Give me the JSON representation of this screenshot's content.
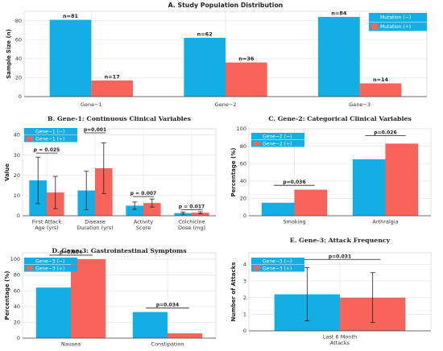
{
  "colors": {
    "neg": "#13aee3",
    "pos": "#f8645a"
  },
  "chart_data": [
    {
      "id": "A",
      "type": "bar",
      "title": "A. Study Population Distribution",
      "xlabel": "",
      "ylabel": "Sample Size (n)",
      "ylim": [
        0,
        90
      ],
      "yticks": [
        0,
        20,
        40,
        60,
        80
      ],
      "categories": [
        "Gene−1",
        "Gene−2",
        "Gene−3"
      ],
      "series": [
        {
          "name": "Mutation (−)",
          "values": [
            81,
            62,
            84
          ],
          "labels": [
            "n=81",
            "n=62",
            "n=84"
          ]
        },
        {
          "name": "Mutation (+)",
          "values": [
            17,
            36,
            14
          ],
          "labels": [
            "n=17",
            "n=36",
            "n=14"
          ]
        }
      ],
      "legend": "top-right",
      "grid": true
    },
    {
      "id": "B",
      "type": "bar",
      "title": "B. Gene-1: Continuous Clinical Variables",
      "xlabel": "",
      "ylabel": "Value",
      "ylim": [
        0,
        43
      ],
      "yticks": [
        0,
        10,
        20,
        30,
        40
      ],
      "categories": [
        "First Attack\nAge (yrs)",
        "Disease\nDuration (yrs)",
        "Activity\nScore",
        "Colchicine\nDose (mg)"
      ],
      "series": [
        {
          "name": "Gene−1 (−)",
          "values": [
            17.5,
            12.5,
            5.0,
            1.3
          ],
          "errors": [
            11.5,
            9.5,
            1.8,
            0.5
          ]
        },
        {
          "name": "Gene−1 (+)",
          "values": [
            11.5,
            23.5,
            6.3,
            1.5
          ],
          "errors": [
            8.0,
            12.5,
            2.0,
            0.5
          ]
        }
      ],
      "annotations": [
        {
          "category": 0,
          "text": "p = 0.025",
          "y": 31
        },
        {
          "category": 1,
          "text": "p=0.001",
          "y": 41
        },
        {
          "category": 2,
          "text": "p = 0.007",
          "y": 9.5
        },
        {
          "category": 3,
          "text": "p = 0.017",
          "y": 3
        }
      ],
      "legend": "top-left",
      "grid": true
    },
    {
      "id": "C",
      "type": "bar",
      "title": "C. Gene-2: Categorical Clinical Variables",
      "xlabel": "",
      "ylabel": "Percentage (%)",
      "ylim": [
        0,
        100
      ],
      "yticks": [
        0,
        20,
        40,
        60,
        80,
        100
      ],
      "categories": [
        "Smoking",
        "Arthralgia"
      ],
      "series": [
        {
          "name": "Gene−2 (−)",
          "values": [
            15,
            65
          ]
        },
        {
          "name": "Gene−2 (+)",
          "values": [
            30,
            83
          ]
        }
      ],
      "annotations": [
        {
          "category": 0,
          "text": "p=0.036",
          "y": 35
        },
        {
          "category": 1,
          "text": "p=0.026",
          "y": 92
        }
      ],
      "legend": "top-left",
      "grid": true
    },
    {
      "id": "D",
      "type": "bar",
      "title": "D. Gene-3: Gastrointestinal Symptoms",
      "xlabel": "",
      "ylabel": "Percentage (%)",
      "ylim": [
        0,
        108
      ],
      "yticks": [
        0,
        20,
        40,
        60,
        80,
        100
      ],
      "categories": [
        "Nausea",
        "Constipation"
      ],
      "series": [
        {
          "name": "Gene−3 (−)",
          "values": [
            64,
            33
          ]
        },
        {
          "name": "Gene−3 (+)",
          "values": [
            100,
            6
          ]
        }
      ],
      "annotations": [
        {
          "category": 0,
          "text": "p=0.004",
          "y": 105
        },
        {
          "category": 1,
          "text": "p=0.034",
          "y": 38
        }
      ],
      "legend": "top-left",
      "grid": true
    },
    {
      "id": "E",
      "type": "bar",
      "title": "E. Gene-3: Attack Frequency",
      "xlabel": "",
      "ylabel": "Number of Attacks",
      "ylim": [
        0,
        4.7
      ],
      "yticks": [
        0,
        1,
        2,
        3,
        4
      ],
      "categories": [
        "Last 6 Month\nAttacks"
      ],
      "series": [
        {
          "name": "Gene−3 (−)",
          "values": [
            2.2
          ],
          "errors": [
            1.6
          ]
        },
        {
          "name": "Gene−3 (+)",
          "values": [
            2.0
          ],
          "errors": [
            1.5
          ]
        }
      ],
      "annotations": [
        {
          "category": 0,
          "text": "p=0.031",
          "y": 4.3
        }
      ],
      "legend": "top-left",
      "grid": true
    }
  ]
}
